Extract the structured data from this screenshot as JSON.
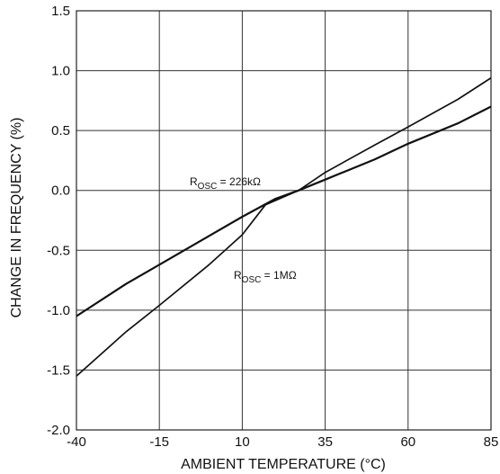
{
  "chart_data": {
    "type": "line",
    "title": "",
    "xlabel": "AMBIENT TEMPERATURE (°C)",
    "ylabel": "CHANGE IN FREQUENCY (%)",
    "xlim": [
      -40,
      85
    ],
    "ylim": [
      -2.0,
      1.5
    ],
    "xticks": [
      -40,
      -15,
      10,
      35,
      60,
      85
    ],
    "xtick_labels": [
      "-40",
      "-15",
      "10",
      "35",
      "60",
      "85"
    ],
    "yticks": [
      1.5,
      1.0,
      0.5,
      0.0,
      -0.5,
      -1.0,
      -1.5,
      -2.0
    ],
    "ytick_labels": [
      "1.5",
      "1.0",
      "0.5",
      "0.0",
      "-0.5",
      "-1.0",
      "-1.5",
      "-2.0"
    ],
    "grid": true,
    "series": [
      {
        "name": "226kΩ",
        "label_prefix": "R",
        "label_sub": "OSC",
        "label_suffix": " = 226kΩ",
        "x": [
          -40,
          -25,
          -15,
          0,
          10,
          20,
          27,
          35,
          50,
          60,
          75,
          85
        ],
        "y": [
          -1.05,
          -0.78,
          -0.62,
          -0.38,
          -0.22,
          -0.07,
          0.0,
          0.09,
          0.26,
          0.39,
          0.56,
          0.7
        ]
      },
      {
        "name": "1MΩ",
        "label_prefix": "R",
        "label_sub": "OSC",
        "label_suffix": " = 1MΩ",
        "x": [
          -40,
          -25,
          -15,
          0,
          10,
          17,
          27,
          35,
          50,
          60,
          75,
          85
        ],
        "y": [
          -1.55,
          -1.18,
          -0.96,
          -0.62,
          -0.37,
          -0.12,
          0.0,
          0.15,
          0.38,
          0.53,
          0.76,
          0.94
        ]
      }
    ]
  }
}
